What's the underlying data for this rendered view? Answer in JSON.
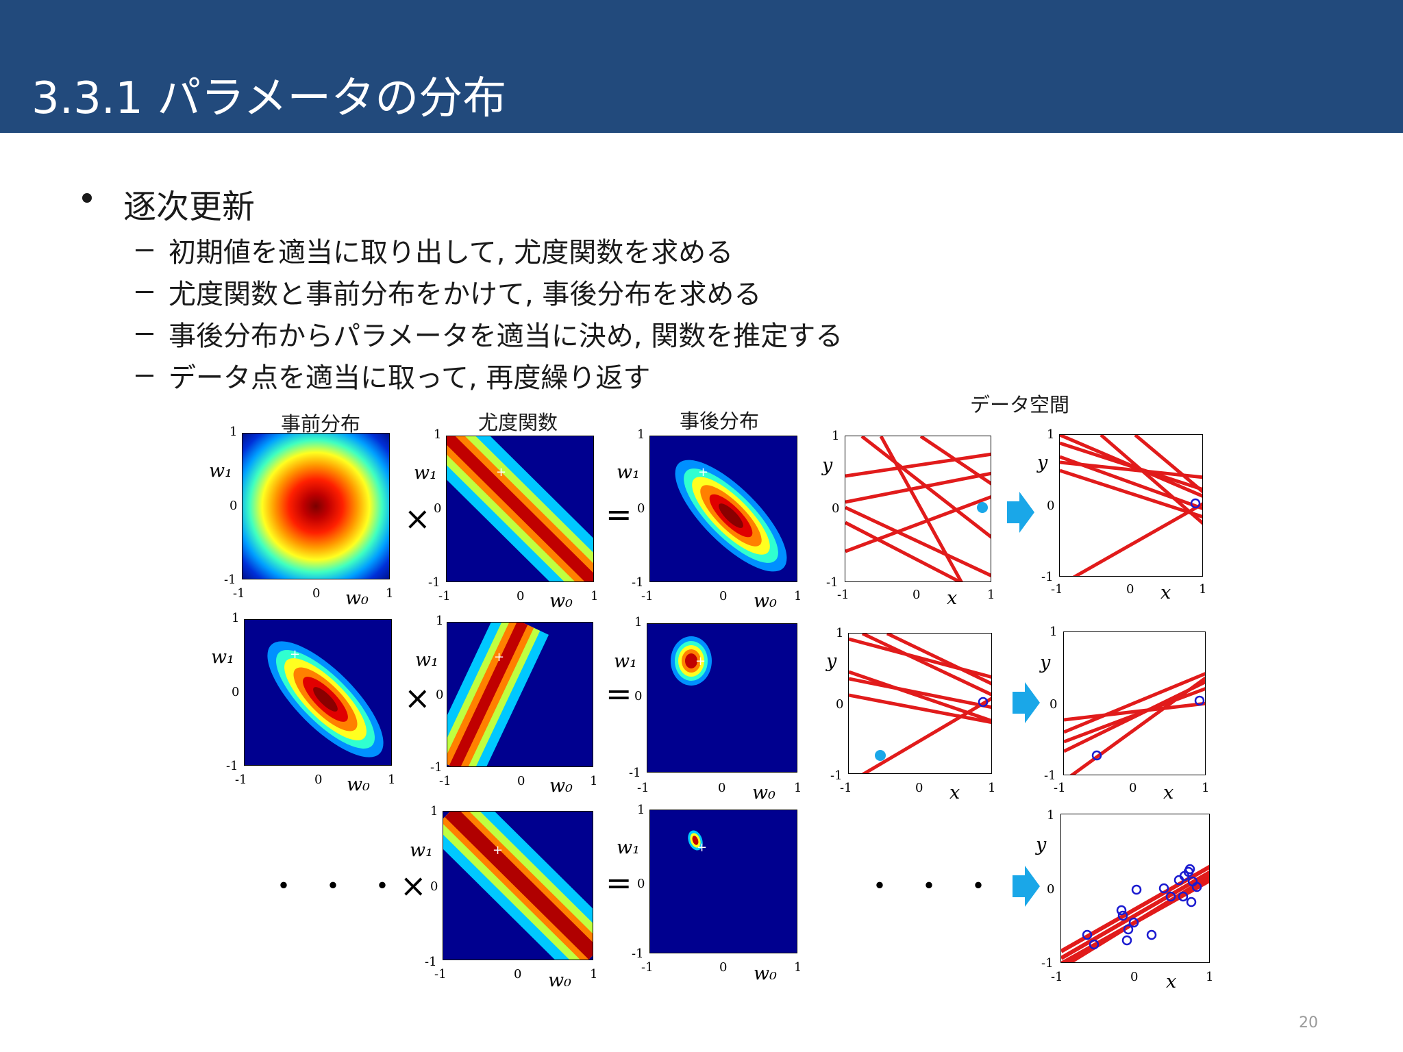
{
  "slide": {
    "title": "3.3.1 パラメータの分布",
    "page_number": "20",
    "bullet": "逐次更新",
    "sub_bullets": [
      "初期値を適当に取り出して, 尤度関数を求める",
      "尤度関数と事前分布をかけて, 事後分布を求める",
      "事後分布からパラメータを適当に決め, 関数を推定する",
      "データ点を適当に取って, 再度繰り返す"
    ]
  },
  "figure": {
    "column_headers": {
      "prior": "事前分布",
      "likelihood": "尤度関数",
      "posterior": "事後分布",
      "data_space": "データ空間"
    },
    "axis_w0": "w₀",
    "axis_w1": "w₁",
    "axis_x": "x",
    "axis_y": "y",
    "tick_min": "-1",
    "tick_zero": "0",
    "tick_max": "1",
    "times": "×",
    "equals": "=",
    "ellipsis": "・・・",
    "colors": {
      "accent_red": "#e11b1b",
      "cyan_point": "#1aa7e8",
      "blue_circle": "#1a1ad0",
      "arrow": "#1aa7e8",
      "header_bg": "#224a7c"
    }
  }
}
